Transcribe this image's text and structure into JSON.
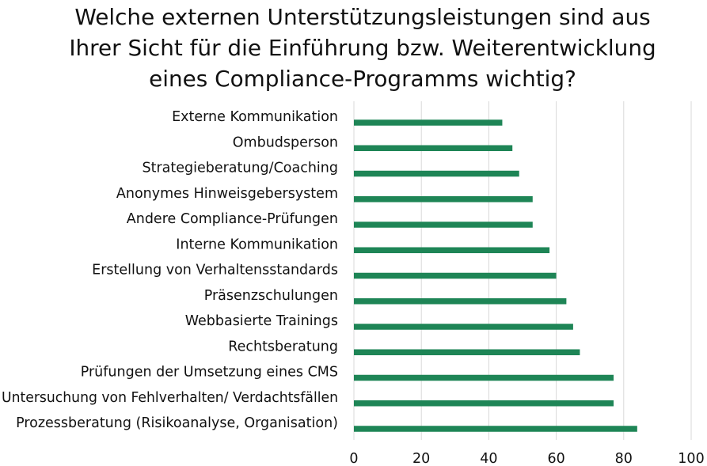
{
  "chart_data": {
    "type": "bar",
    "orientation": "horizontal",
    "title_lines": [
      "Welche externen Unterstützungsleistungen sind aus",
      "Ihrer Sicht für die Einführung bzw. Weiterentwicklung",
      "eines Compliance-Programms wichtig?"
    ],
    "categories": [
      "Externe Kommunikation",
      "Ombudsperson",
      "Strategieberatung/Coaching",
      "Anonymes Hinweisgebersystem",
      "Andere Compliance-Prüfungen",
      "Interne Kommunikation",
      "Erstellung von Verhaltensstandards",
      "Präsenzschulungen",
      "Webbasierte Trainings",
      "Rechtsberatung",
      "Prüfungen der Umsetzung eines CMS",
      "Untersuchung von Fehlverhalten/ Verdachtsfällen",
      "Prozessberatung (Risikoanalyse, Organisation)"
    ],
    "values": [
      44,
      47,
      49,
      53,
      53,
      58,
      60,
      63,
      65,
      67,
      77,
      77,
      84
    ],
    "xlim": [
      0,
      100
    ],
    "xticks": [
      "0",
      "20",
      "40",
      "60",
      "80",
      "100"
    ],
    "xlabel": "",
    "ylabel": "",
    "grid": "vertical",
    "bar_color": "#1e8556",
    "grid_color": "#d9d9d9"
  }
}
